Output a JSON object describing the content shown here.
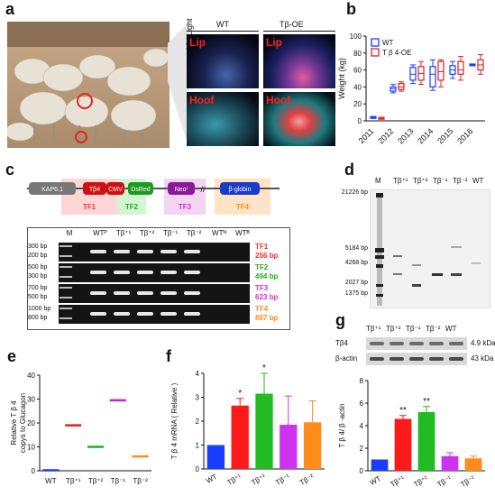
{
  "panels": {
    "a": "a",
    "b": "b",
    "c": "c",
    "d": "d",
    "e": "e",
    "f": "f",
    "g": "g"
  },
  "panel_a": {
    "uv_label": "UV Light",
    "col_wt": "WT",
    "col_oe": "Tβ-OE",
    "row_lip": "Lip",
    "row_hoof": "Hoof"
  },
  "panel_c": {
    "construct": [
      "KAP6.1",
      "Tβ4",
      "CMV",
      "DsRed",
      "Neoʳ",
      "β-globin"
    ],
    "tf": [
      {
        "name": "TF1",
        "color": "#ff2a2a"
      },
      {
        "name": "TF2",
        "color": "#22aa22"
      },
      {
        "name": "TF3",
        "color": "#cc33cc"
      },
      {
        "name": "TF4",
        "color": "#ff8c1a"
      }
    ],
    "lanes": [
      "M",
      "WTᴾ",
      "Tβ⁺¹",
      "Tβ⁺²",
      "Tβ⁻¹",
      "Tβ⁻²",
      "WTᴺ",
      "WTᴮ"
    ],
    "gels": [
      {
        "sizes": [
          "300 bp",
          "200 bp"
        ],
        "label": "TF1",
        "size": "256 bp",
        "color": "#ff2a2a"
      },
      {
        "sizes": [
          "500 bp",
          "300 bp"
        ],
        "label": "TF2",
        "size": "494 bp",
        "color": "#22aa22"
      },
      {
        "sizes": [
          "700 bp",
          "500 bp"
        ],
        "label": "TF3",
        "size": "623 bp",
        "color": "#cc33cc"
      },
      {
        "sizes": [
          "1000 bp",
          "800 bp"
        ],
        "label": "TF4",
        "size": "887 bp",
        "color": "#ff8c1a"
      }
    ]
  },
  "panel_d": {
    "lanes": [
      "M",
      "Tβ⁺¹",
      "Tβ⁺²",
      "Tβ⁻¹",
      "Tβ⁻²",
      "WT"
    ],
    "markers": [
      "21226 bp",
      "5184 bp",
      "4268 bp",
      "2027 bp",
      "1375 bp"
    ]
  },
  "panel_g": {
    "lanes": [
      "Tβ⁺¹",
      "Tβ⁺²",
      "Tβ⁻¹",
      "Tβ⁻²",
      "WT"
    ],
    "rows": [
      {
        "name": "Tβ4",
        "size": "4.9 kDa"
      },
      {
        "name": "β-actin",
        "size": "43 kDa"
      }
    ]
  },
  "chart_data": [
    {
      "id": "b",
      "type": "box",
      "ylabel": "Weight (kg)",
      "ylim": [
        0,
        100
      ],
      "yticks": [
        0,
        20,
        40,
        60,
        80,
        100
      ],
      "categories": [
        "2011",
        "2012",
        "2013",
        "2014",
        "2015",
        "2016"
      ],
      "legend": [
        "WT",
        "T β 4-OE"
      ],
      "series": [
        {
          "name": "WT",
          "color": "#1a3cff",
          "boxes": [
            [
              3,
              3,
              4,
              5,
              5
            ],
            [
              33,
              35,
              38,
              40,
              43
            ],
            [
              44,
              48,
              55,
              63,
              66
            ],
            [
              36,
              40,
              55,
              64,
              72
            ],
            [
              50,
              55,
              60,
              65,
              70
            ],
            [
              65,
              65,
              66,
              67,
              67
            ]
          ]
        },
        {
          "name": "T β 4-OE",
          "color": "#e02020",
          "boxes": [
            [
              2,
              2,
              3,
              4,
              4
            ],
            [
              35,
              37,
              40,
              44,
              46
            ],
            [
              43,
              48,
              56,
              64,
              70
            ],
            [
              40,
              48,
              58,
              70,
              72
            ],
            [
              48,
              55,
              60,
              70,
              76
            ],
            [
              55,
              60,
              66,
              72,
              78
            ]
          ]
        }
      ]
    },
    {
      "id": "e",
      "type": "scatter",
      "ylabel": "Relative T β 4\ncopys to Glucagon",
      "ylim": [
        0,
        40
      ],
      "yticks": [
        0,
        10,
        20,
        30,
        40
      ],
      "categories": [
        "WT",
        "Tβ⁺¹",
        "Tβ⁺²",
        "Tβ⁻¹",
        "Tβ⁻²"
      ],
      "values": [
        0.2,
        19,
        10,
        29.5,
        6
      ],
      "colors": [
        "#1a3cff",
        "#e02020",
        "#20b020",
        "#c020e0",
        "#ff8c1a"
      ]
    },
    {
      "id": "f",
      "type": "bar",
      "ylabel": "T β 4 mRNA ( Relative )",
      "ylim": [
        0,
        4
      ],
      "yticks": [
        0,
        1,
        2,
        3,
        4
      ],
      "categories": [
        "WT",
        "Tβ⁺¹",
        "Tβ⁺²",
        "Tβ⁻¹",
        "Tβ⁻²"
      ],
      "values": [
        1.0,
        2.65,
        3.15,
        1.85,
        1.95
      ],
      "errors": [
        0,
        0.3,
        0.85,
        1.2,
        0.9
      ],
      "sig": [
        "",
        "*",
        "*",
        "",
        ""
      ],
      "colors": [
        "#1a3cff",
        "#ff1a1a",
        "#22bb22",
        "#cc33ee",
        "#ff8c1a"
      ]
    },
    {
      "id": "g",
      "type": "bar",
      "ylabel": "T β 4/ β -actin",
      "ylim": [
        0,
        8
      ],
      "yticks": [
        0,
        2,
        4,
        6,
        8
      ],
      "categories": [
        "WT",
        "Tβ⁺¹",
        "Tβ⁺²",
        "Tβ⁻¹",
        "Tβ⁻²"
      ],
      "values": [
        1.0,
        4.6,
        5.2,
        1.3,
        1.1
      ],
      "errors": [
        0,
        0.3,
        0.5,
        0.3,
        0.2
      ],
      "sig": [
        "",
        "**",
        "**",
        "",
        ""
      ],
      "colors": [
        "#1a3cff",
        "#ff1a1a",
        "#22bb22",
        "#cc33ee",
        "#ff8c1a"
      ]
    }
  ]
}
